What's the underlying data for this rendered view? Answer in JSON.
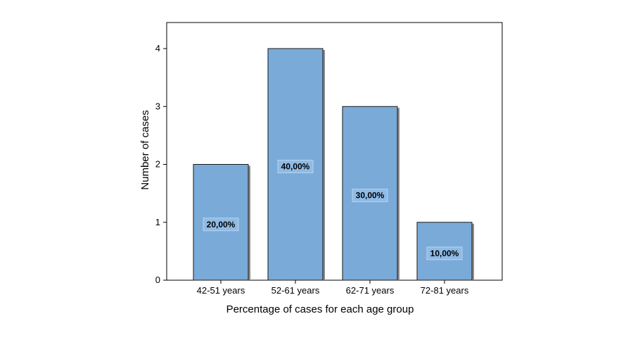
{
  "chart_data": {
    "type": "bar",
    "categories": [
      "42-51 years",
      "52-61 years",
      "62-71 years",
      "72-81 years"
    ],
    "values": [
      2,
      4,
      3,
      1
    ],
    "data_labels": [
      "20,00%",
      "40,00%",
      "30,00%",
      "10,00%"
    ],
    "title": "",
    "xlabel": "Percentage of cases for each age group",
    "ylabel": "Number of cases",
    "ylim": [
      0,
      4.4
    ],
    "yticks": [
      0,
      1,
      2,
      3,
      4
    ],
    "grid": false,
    "legend": "none",
    "colors": {
      "bar_fill": "#7aaad8",
      "bar_stroke": "#1a1a1a",
      "bar_shadow": "#8a8a8a",
      "label_box": "#8fbbe6",
      "label_box_stroke": "#b9d3ee",
      "axis": "#000000",
      "frame": "#000000"
    }
  }
}
